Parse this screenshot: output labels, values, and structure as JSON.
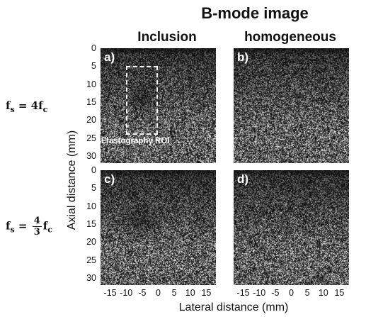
{
  "figure": {
    "title": "B-mode image",
    "columns": [
      "Inclusion",
      "homogeneous"
    ],
    "rows": [
      {
        "eq_base": "f",
        "eq_sub": "s",
        "eq_rhs": "= 4f",
        "eq_rhs_sub": "c"
      },
      {
        "eq_base": "f",
        "eq_sub": "s",
        "eq_eq": "=",
        "frac_num": "4",
        "frac_den": "3",
        "eq_tail": "f",
        "eq_tail_sub": "c"
      }
    ],
    "panels": [
      {
        "label": "a)",
        "has_inclusion": true,
        "roi": {
          "label": "Elastography ROI",
          "lateral_mm": [
            -10,
            0
          ],
          "axial_mm": [
            5,
            24
          ]
        }
      },
      {
        "label": "b)",
        "has_inclusion": false
      },
      {
        "label": "c)",
        "has_inclusion": true
      },
      {
        "label": "d)",
        "has_inclusion": false
      }
    ],
    "axes": {
      "ylabel": "Axial distance (mm)",
      "xlabel": "Lateral distance (mm)",
      "yticks": [
        "0",
        "5",
        "10",
        "15",
        "20",
        "25",
        "30"
      ],
      "xticks": [
        "-15",
        "-10",
        "-5",
        "0",
        "5",
        "10",
        "15"
      ],
      "axial_range_mm": [
        0,
        32
      ],
      "lateral_range_mm": [
        -18,
        18
      ]
    }
  }
}
